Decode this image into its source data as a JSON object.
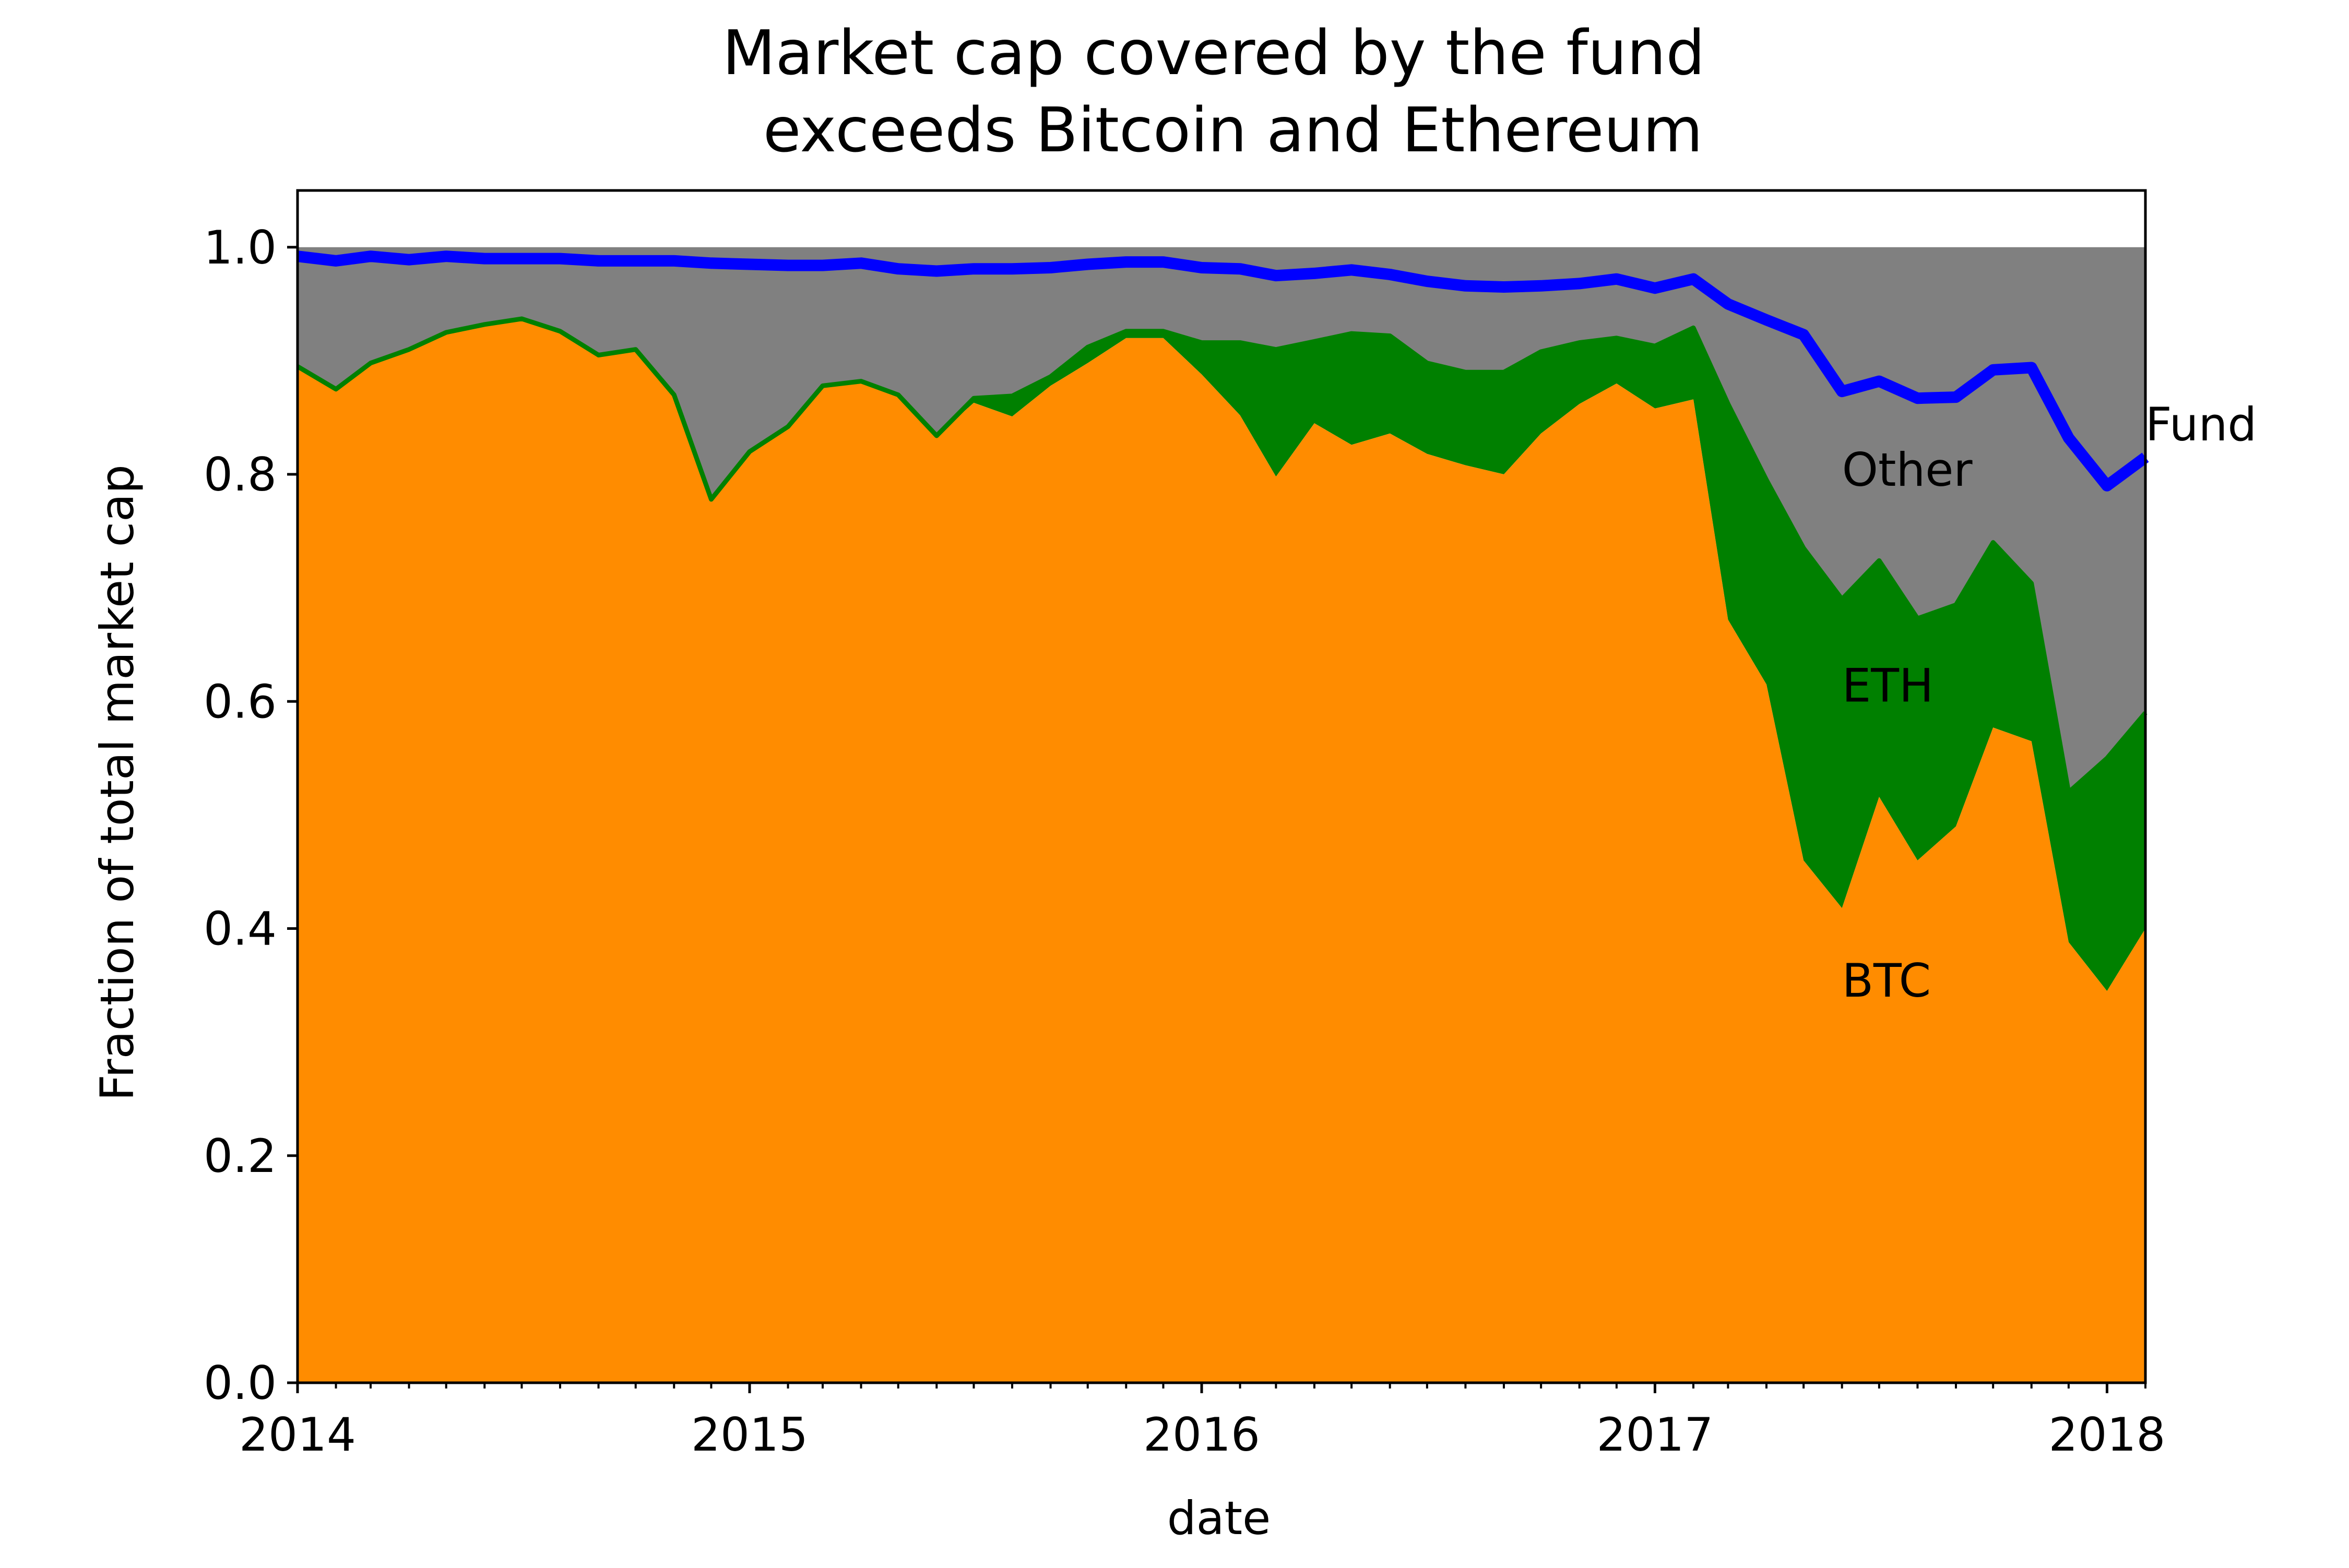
{
  "chart_data": {
    "type": "area",
    "title_lines": [
      "Market cap covered by the fund",
      "exceeds Bitcoin and Ethereum"
    ],
    "xlabel": "date",
    "ylabel": "Fraction of total market cap",
    "xlim": [
      "2014-01-01",
      "2018-02-01"
    ],
    "ylim": [
      0,
      1.05
    ],
    "x_ticks": [
      "2014",
      "2015",
      "2016",
      "2017",
      "2018"
    ],
    "y_ticks": [
      "0.0",
      "0.2",
      "0.4",
      "0.6",
      "0.8",
      "1.0"
    ],
    "grid": false,
    "x": [
      "2014-01-01",
      "2014-02-01",
      "2014-03-01",
      "2014-04-01",
      "2014-05-01",
      "2014-06-01",
      "2014-07-01",
      "2014-08-01",
      "2014-09-01",
      "2014-10-01",
      "2014-11-01",
      "2014-12-01",
      "2015-01-01",
      "2015-02-01",
      "2015-03-01",
      "2015-04-01",
      "2015-05-01",
      "2015-06-01",
      "2015-07-01",
      "2015-08-01",
      "2015-09-01",
      "2015-10-01",
      "2015-11-01",
      "2015-12-01",
      "2016-01-01",
      "2016-02-01",
      "2016-03-01",
      "2016-04-01",
      "2016-05-01",
      "2016-06-01",
      "2016-07-01",
      "2016-08-01",
      "2016-09-01",
      "2016-10-01",
      "2016-11-01",
      "2016-12-01",
      "2017-01-01",
      "2017-02-01",
      "2017-03-01",
      "2017-04-01",
      "2017-05-01",
      "2017-06-01",
      "2017-07-01",
      "2017-08-01",
      "2017-09-01",
      "2017-10-01",
      "2017-11-01",
      "2017-12-01",
      "2018-01-01",
      "2018-02-01"
    ],
    "series": [
      {
        "name": "BTC",
        "color": "#ff8c00",
        "values": [
          0.895,
          0.875,
          0.898,
          0.91,
          0.925,
          0.932,
          0.937,
          0.926,
          0.905,
          0.91,
          0.87,
          0.778,
          0.82,
          0.842,
          0.878,
          0.882,
          0.87,
          0.834,
          0.863,
          0.851,
          0.878,
          0.898,
          0.92,
          0.92,
          0.888,
          0.852,
          0.798,
          0.845,
          0.826,
          0.836,
          0.818,
          0.808,
          0.8,
          0.836,
          0.862,
          0.88,
          0.858,
          0.866,
          0.672,
          0.615,
          0.46,
          0.418,
          0.516,
          0.46,
          0.49,
          0.577,
          0.565,
          0.388,
          0.345,
          0.4
        ]
      },
      {
        "name": "ETH",
        "color": "#008000",
        "values": [
          0,
          0,
          0,
          0,
          0,
          0,
          0,
          0,
          0,
          0,
          0,
          0,
          0,
          0,
          0,
          0,
          0,
          0,
          0.004,
          0.018,
          0.008,
          0.014,
          0.006,
          0.006,
          0.028,
          0.064,
          0.112,
          0.072,
          0.098,
          0.086,
          0.08,
          0.082,
          0.09,
          0.072,
          0.054,
          0.04,
          0.055,
          0.063,
          0.19,
          0.18,
          0.275,
          0.272,
          0.208,
          0.213,
          0.195,
          0.163,
          0.139,
          0.132,
          0.205,
          0.19
        ]
      },
      {
        "name": "Other",
        "color": "#808080",
        "values": [
          0.105,
          0.125,
          0.102,
          0.09,
          0.075,
          0.068,
          0.063,
          0.074,
          0.095,
          0.09,
          0.13,
          0.222,
          0.18,
          0.158,
          0.122,
          0.118,
          0.13,
          0.166,
          0.133,
          0.131,
          0.114,
          0.088,
          0.074,
          0.074,
          0.084,
          0.084,
          0.09,
          0.083,
          0.076,
          0.078,
          0.102,
          0.11,
          0.11,
          0.092,
          0.084,
          0.08,
          0.087,
          0.071,
          0.138,
          0.205,
          0.265,
          0.31,
          0.276,
          0.327,
          0.315,
          0.26,
          0.296,
          0.48,
          0.45,
          0.41
        ]
      },
      {
        "name": "Fund",
        "color": "#0000ff",
        "values": [
          0.992,
          0.988,
          0.992,
          0.989,
          0.992,
          0.99,
          0.99,
          0.99,
          0.988,
          0.988,
          0.988,
          0.986,
          0.985,
          0.984,
          0.984,
          0.986,
          0.981,
          0.979,
          0.981,
          0.981,
          0.982,
          0.985,
          0.987,
          0.987,
          0.982,
          0.981,
          0.975,
          0.977,
          0.98,
          0.976,
          0.97,
          0.966,
          0.965,
          0.966,
          0.968,
          0.972,
          0.964,
          0.972,
          0.95,
          0.936,
          0.923,
          0.873,
          0.882,
          0.867,
          0.868,
          0.892,
          0.894,
          0.832,
          0.79,
          0.815
        ]
      }
    ],
    "labels": [
      {
        "text": "BTC",
        "x": "2017-06-01",
        "y": 0.34
      },
      {
        "text": "ETH",
        "x": "2017-06-01",
        "y": 0.6
      },
      {
        "text": "Other",
        "x": "2017-06-01",
        "y": 0.79
      },
      {
        "text": "Fund",
        "x": "2018-02-01",
        "y": 0.83
      }
    ]
  }
}
